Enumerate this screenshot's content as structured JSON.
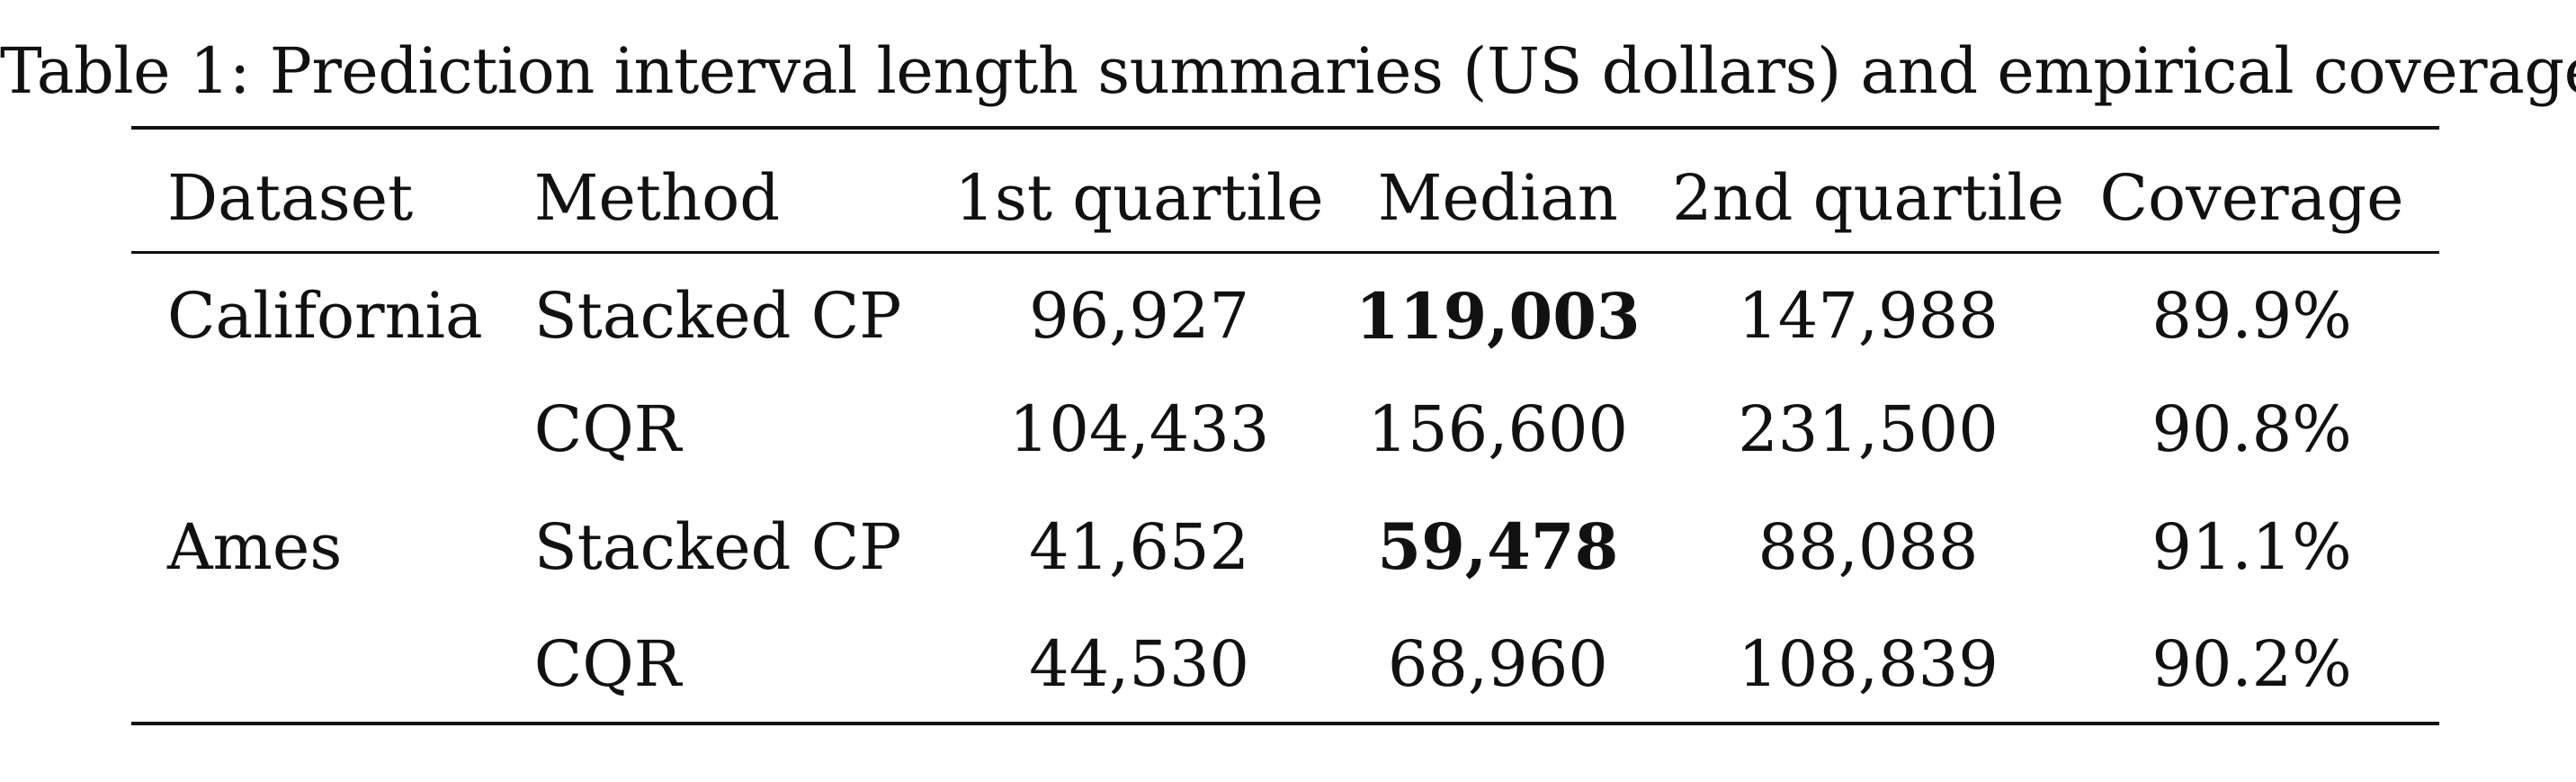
{
  "caption": "Table 1: Prediction interval length summaries (US dollars) and empirical coverage.",
  "table": {
    "headers": {
      "dataset": "Dataset",
      "method": "Method",
      "q1": "1st quartile",
      "median": "Median",
      "q2": "2nd quartile",
      "coverage": "Coverage"
    },
    "rows": [
      {
        "dataset": "California",
        "method": "Stacked CP",
        "q1": "96,927",
        "median": "119,003",
        "q2": "147,988",
        "coverage": "89.9%"
      },
      {
        "dataset": "",
        "method": "CQR",
        "q1": "104,433",
        "median": "156,600",
        "q2": "231,500",
        "coverage": "90.8%"
      },
      {
        "dataset": "Ames",
        "method": "Stacked CP",
        "q1": "41,652",
        "median": "59,478",
        "q2": "88,088",
        "coverage": "91.1%"
      },
      {
        "dataset": "",
        "method": "CQR",
        "q1": "44,530",
        "median": "68,960",
        "q2": "108,839",
        "coverage": "90.2%"
      }
    ]
  }
}
